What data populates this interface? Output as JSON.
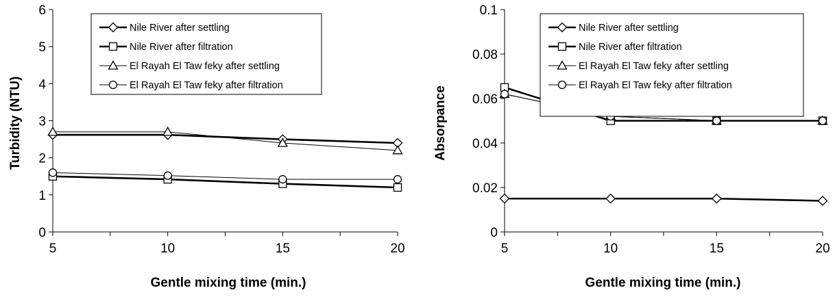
{
  "charts": [
    {
      "type": "line",
      "title": "",
      "xlabel": "Gentle mixing time (min.)",
      "ylabel": "Turbidity (NTU)",
      "xlim": [
        5,
        20
      ],
      "ylim": [
        0,
        6
      ],
      "xticks": [
        "5",
        "10",
        "15",
        "20"
      ],
      "yticks": [
        "0",
        "1",
        "2",
        "3",
        "4",
        "5",
        "6"
      ],
      "grid": false,
      "legend_position": "top-center",
      "x": [
        5,
        10,
        15,
        20
      ],
      "series": [
        {
          "name": "Nile River after  settling",
          "marker": "diamond",
          "weight": "bold",
          "values": [
            2.62,
            2.62,
            2.5,
            2.4
          ]
        },
        {
          "name": "Nile River after filtration",
          "marker": "square",
          "weight": "bold",
          "values": [
            1.5,
            1.42,
            1.3,
            1.2
          ]
        },
        {
          "name": "El Rayah El Taw feky after settling",
          "marker": "triangle",
          "weight": "thin",
          "values": [
            2.7,
            2.7,
            2.4,
            2.2
          ]
        },
        {
          "name": "El Rayah El Taw feky after filtration",
          "marker": "circle",
          "weight": "thin",
          "values": [
            1.6,
            1.52,
            1.42,
            1.42
          ]
        }
      ]
    },
    {
      "type": "line",
      "title": "",
      "xlabel": "Gentle mixing time (min.)",
      "ylabel": "Absorpance",
      "xlim": [
        5,
        20
      ],
      "ylim": [
        0,
        0.1
      ],
      "xticks": [
        "5",
        "10",
        "15",
        "20"
      ],
      "yticks": [
        "0",
        "0.02",
        "0.04",
        "0.06",
        "0.08",
        "0.1"
      ],
      "grid": false,
      "legend_position": "top-right",
      "x": [
        5,
        10,
        15,
        20
      ],
      "series": [
        {
          "name": "Nile River after  settling",
          "marker": "diamond",
          "weight": "bold",
          "values": [
            0.015,
            0.015,
            0.015,
            0.014
          ]
        },
        {
          "name": "Nile River after filtration",
          "marker": "square",
          "weight": "bold",
          "values": [
            0.065,
            0.05,
            0.05,
            0.05
          ]
        },
        {
          "name": "El Rayah El Taw feky after settling",
          "marker": "triangle",
          "weight": "thin",
          "values": [
            0.062,
            0.052,
            0.05,
            0.05
          ]
        },
        {
          "name": "El Rayah El Taw feky after filtration",
          "marker": "circle",
          "weight": "thin",
          "values": [
            0.062,
            0.052,
            0.05,
            0.05
          ]
        }
      ]
    }
  ]
}
